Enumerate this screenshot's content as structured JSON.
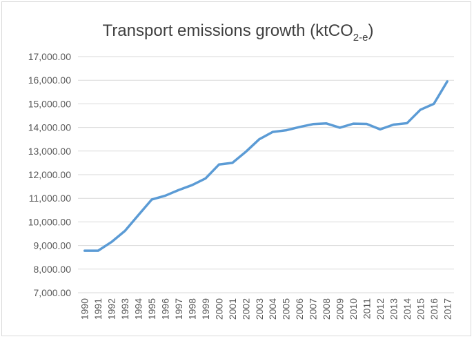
{
  "chart_data": {
    "type": "line",
    "title": {
      "main": "Transport emissions growth (ktCO",
      "subscript": "2-e",
      "close": ")"
    },
    "xlabel": "",
    "ylabel": "",
    "ylim": [
      7000,
      17000
    ],
    "ytick_step": 1000,
    "y_ticks": [
      "7,000.00",
      "8,000.00",
      "9,000.00",
      "10,000.00",
      "11,000.00",
      "12,000.00",
      "13,000.00",
      "14,000.00",
      "15,000.00",
      "16,000.00",
      "17,000.00"
    ],
    "grid": true,
    "legend": "none",
    "categories": [
      "1990",
      "1991",
      "1992",
      "1993",
      "1994",
      "1995",
      "1996",
      "1997",
      "1998",
      "1999",
      "2000",
      "2001",
      "2002",
      "2003",
      "2004",
      "2005",
      "2006",
      "2007",
      "2008",
      "2009",
      "2010",
      "2011",
      "2012",
      "2013",
      "2014",
      "2015",
      "2016",
      "2017"
    ],
    "series": [
      {
        "color": "#5b9bd5",
        "values": [
          8780,
          8780,
          9150,
          9620,
          10290,
          10950,
          11110,
          11350,
          11560,
          11840,
          12430,
          12500,
          12970,
          13500,
          13810,
          13880,
          14020,
          14140,
          14170,
          13990,
          14160,
          14150,
          13920,
          14120,
          14180,
          14750,
          15000,
          15950
        ]
      }
    ]
  }
}
